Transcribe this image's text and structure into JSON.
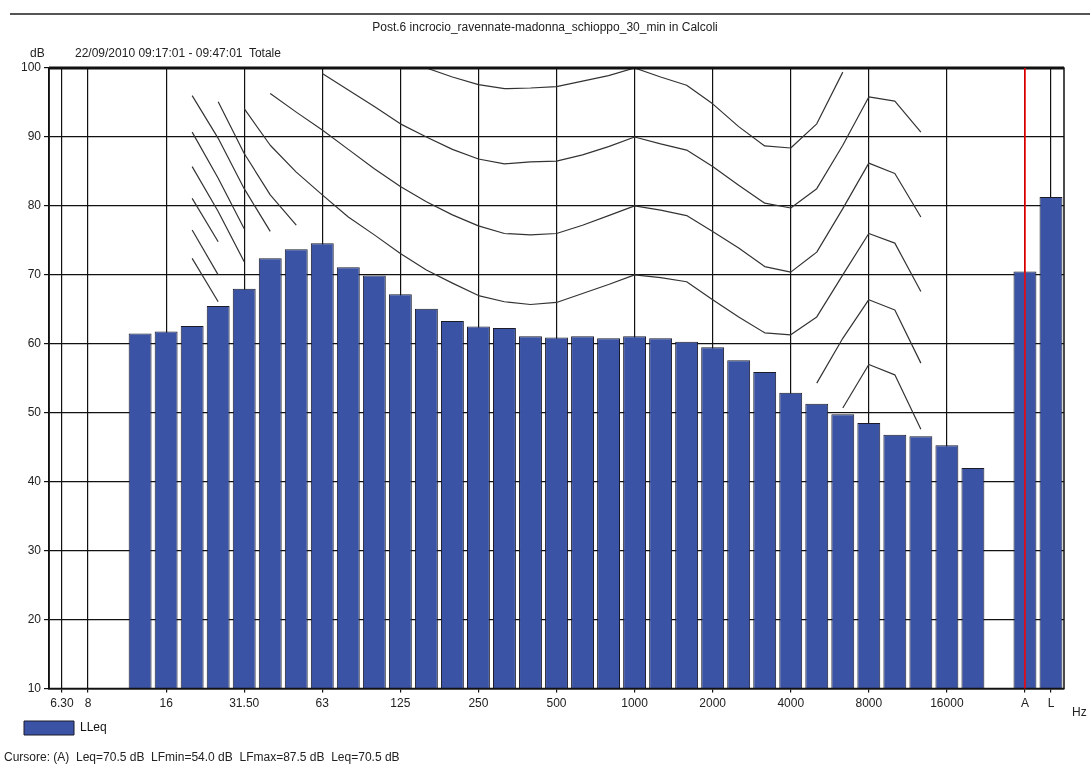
{
  "chart_data": {
    "type": "bar",
    "title": "Post.6 incrocio_ravennate-madonna_schioppo_30_min in Calcoli",
    "subtitle": "22/09/2010 09:17:01 - 09:47:01  Totale",
    "xlabel": "Hz",
    "ylabel": "dB",
    "categories": [
      "6.30",
      "8",
      null,
      null,
      "16",
      null,
      null,
      "31.50",
      null,
      null,
      "63",
      null,
      null,
      "125",
      null,
      null,
      "250",
      null,
      null,
      "500",
      null,
      null,
      "1000",
      null,
      null,
      "2000",
      null,
      null,
      "4000",
      null,
      null,
      "8000",
      null,
      null,
      "16000",
      null,
      null,
      "A",
      "L"
    ],
    "series": [
      {
        "name": "LLeq",
        "color": "#3a53a4",
        "values": [
          null,
          null,
          null,
          61.5,
          61.8,
          62.6,
          65.5,
          68.0,
          72.4,
          73.7,
          74.6,
          71.1,
          69.9,
          67.2,
          65.1,
          63.3,
          62.5,
          62.3,
          61.1,
          60.9,
          61.1,
          60.8,
          61.1,
          60.8,
          60.3,
          59.5,
          57.6,
          55.9,
          52.9,
          51.3,
          49.8,
          48.5,
          46.8,
          46.6,
          45.3,
          42.0,
          null,
          70.5,
          81.3
        ]
      },
      {
        "type": "line",
        "color": "#333333",
        "values": [
          null,
          null,
          null,
          null,
          null,
          null,
          null,
          null,
          null,
          null,
          null,
          null,
          null,
          null,
          100,
          98.7,
          97.6,
          97.0,
          97.1,
          97.3,
          98.1,
          98.9,
          100,
          98.7,
          97.5,
          94.8,
          91.5,
          88.7,
          88.4,
          91.9,
          99.4,
          null,
          null,
          null,
          null,
          null,
          null,
          null,
          null
        ]
      },
      {
        "type": "line",
        "color": "#333333",
        "values": [
          null,
          null,
          null,
          null,
          null,
          null,
          null,
          null,
          null,
          null,
          99.2,
          96.8,
          94.4,
          91.9,
          90.0,
          88.2,
          86.8,
          86.1,
          86.4,
          86.5,
          87.4,
          88.6,
          90.0,
          89.0,
          88.1,
          85.7,
          83.0,
          80.4,
          79.7,
          82.5,
          88.8,
          95.8,
          95.2,
          90.7,
          null,
          null,
          null,
          null,
          null
        ]
      },
      {
        "type": "line",
        "color": "#333333",
        "values": [
          null,
          null,
          null,
          null,
          null,
          null,
          null,
          null,
          96.3,
          93.6,
          91.0,
          88.2,
          85.4,
          82.8,
          80.6,
          78.7,
          77.1,
          76.0,
          75.8,
          76.0,
          77.2,
          78.6,
          80.0,
          79.4,
          78.6,
          76.3,
          73.9,
          71.2,
          70.4,
          73.3,
          79.6,
          86.2,
          84.7,
          78.4,
          null,
          null,
          null,
          null,
          null
        ]
      },
      {
        "type": "line",
        "color": "#333333",
        "values": [
          null,
          null,
          null,
          null,
          null,
          null,
          null,
          94.1,
          88.8,
          84.9,
          81.6,
          78.4,
          75.8,
          73.1,
          70.7,
          68.8,
          67.0,
          66.1,
          65.7,
          66.0,
          67.3,
          68.6,
          70.0,
          69.6,
          69.0,
          66.4,
          63.9,
          61.6,
          61.3,
          63.9,
          70.0,
          76.0,
          74.6,
          67.6,
          null,
          null,
          null,
          null,
          null
        ]
      },
      {
        "type": "line",
        "color": "#333333",
        "values": [
          null,
          null,
          null,
          null,
          null,
          null,
          95.1,
          87.6,
          81.6,
          77.2,
          null,
          null,
          null,
          null,
          null,
          null,
          null,
          null,
          null,
          null,
          null,
          null,
          null,
          null,
          null,
          null,
          null,
          null,
          null,
          54.3,
          60.8,
          66.4,
          64.9,
          57.2,
          null,
          null,
          null,
          null,
          null
        ]
      },
      {
        "type": "line",
        "color": "#333333",
        "values": [
          null,
          null,
          null,
          null,
          null,
          96.0,
          89.8,
          82.5,
          76.3,
          null,
          null,
          null,
          null,
          null,
          null,
          null,
          null,
          null,
          null,
          null,
          null,
          null,
          null,
          null,
          null,
          null,
          null,
          null,
          null,
          null,
          50.7,
          57.0,
          55.5,
          47.6,
          null,
          null,
          null,
          null,
          null
        ]
      },
      {
        "type": "line",
        "color": "#333333",
        "values": [
          null,
          null,
          null,
          null,
          null,
          90.7,
          84.0,
          76.7,
          null,
          null,
          null,
          null,
          null,
          null,
          null,
          null,
          null,
          null,
          null,
          null,
          null,
          null,
          null,
          null,
          null,
          null,
          null,
          null,
          null,
          null,
          null,
          null,
          null,
          null,
          null,
          null,
          null,
          null,
          null
        ]
      },
      {
        "type": "line",
        "color": "#333333",
        "values": [
          null,
          null,
          null,
          null,
          null,
          85.7,
          79.2,
          71.9,
          null,
          null,
          null,
          null,
          null,
          null,
          null,
          null,
          null,
          null,
          null,
          null,
          null,
          null,
          null,
          null,
          null,
          null,
          null,
          null,
          null,
          null,
          null,
          null,
          null,
          null,
          null,
          null,
          null,
          null,
          null
        ]
      },
      {
        "type": "line",
        "color": "#333333",
        "values": [
          null,
          null,
          null,
          null,
          null,
          81.1,
          74.8,
          null,
          null,
          null,
          null,
          null,
          null,
          null,
          null,
          null,
          null,
          null,
          null,
          null,
          null,
          null,
          null,
          null,
          null,
          null,
          null,
          null,
          null,
          null,
          null,
          null,
          null,
          null,
          null,
          null,
          null,
          null,
          null
        ]
      },
      {
        "type": "line",
        "color": "#333333",
        "values": [
          null,
          null,
          null,
          null,
          null,
          76.5,
          70.0,
          null,
          null,
          null,
          null,
          null,
          null,
          null,
          null,
          null,
          null,
          null,
          null,
          null,
          null,
          null,
          null,
          null,
          null,
          null,
          null,
          null,
          null,
          null,
          null,
          null,
          null,
          null,
          null,
          null,
          null,
          null,
          null
        ]
      },
      {
        "type": "line",
        "color": "#333333",
        "values": [
          null,
          null,
          null,
          null,
          null,
          72.4,
          66.1,
          null,
          null,
          null,
          null,
          null,
          null,
          null,
          null,
          null,
          null,
          null,
          null,
          null,
          null,
          null,
          null,
          null,
          null,
          null,
          null,
          null,
          null,
          null,
          null,
          null,
          null,
          null,
          null,
          null,
          null,
          null,
          null
        ]
      }
    ],
    "ylim": [
      10,
      100
    ],
    "yticks": [
      10,
      20,
      30,
      40,
      50,
      60,
      70,
      80,
      90,
      100
    ],
    "grid": true,
    "legend": "bottom left",
    "marker": "none",
    "line_style": "solid",
    "ref_lines": [
      {
        "axis": "x",
        "value": "A",
        "color": "#ff0000"
      }
    ],
    "annotations": [
      "Cursore: (A)  Leq=70.5 dB  LFmin=54.0 dB  LFmax=87.5 dB  Leq=70.5 dB"
    ]
  }
}
